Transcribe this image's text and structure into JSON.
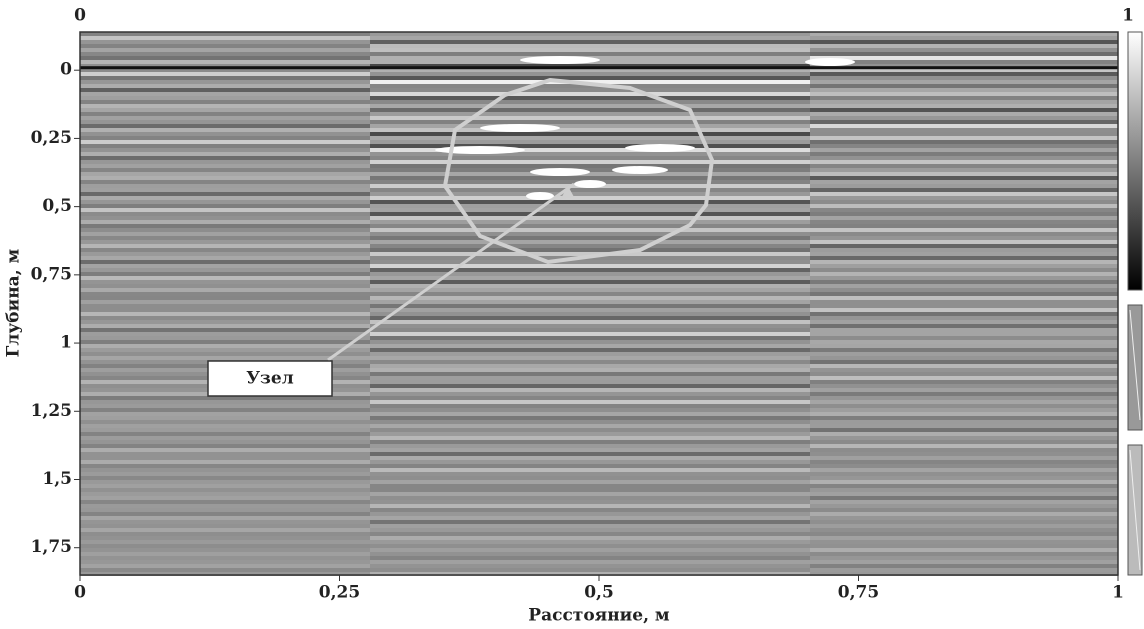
{
  "chart_data": {
    "type": "radargram",
    "xlabel": "Расстояние, м",
    "ylabel": "Глубина, м",
    "xlim": [
      0,
      1
    ],
    "xticks": [
      0,
      {
        "value": 0.25,
        "label": "0,25"
      },
      {
        "value": 0.5,
        "label": "0,5"
      },
      {
        "value": 0.75,
        "label": "0,75"
      },
      1
    ],
    "ylim": [
      -0.14,
      1.85
    ],
    "yticks": [
      0,
      {
        "value": 0.25,
        "label": "0,25"
      },
      {
        "value": 0.5,
        "label": "0,5"
      },
      {
        "value": 0.75,
        "label": "0,75"
      },
      1,
      {
        "value": 1.25,
        "label": "1,25"
      },
      {
        "value": 1.5,
        "label": "1,5"
      },
      {
        "value": 1.75,
        "label": "1,75"
      }
    ],
    "scale_labels": [
      "0",
      "1"
    ],
    "annotation": "Узел"
  }
}
